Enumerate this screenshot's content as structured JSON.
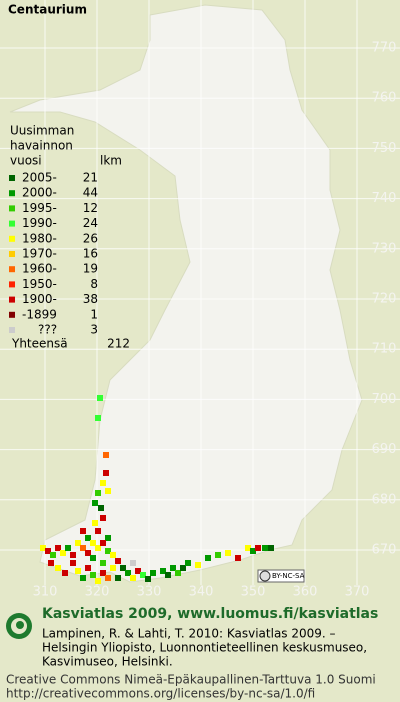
{
  "title": "Centaurium",
  "legend": {
    "heading": [
      "Uusimman",
      "havainnon"
    ],
    "columns": [
      "vuosi",
      "lkm"
    ],
    "rows": [
      {
        "label": "2005-",
        "count": 21,
        "color": "#006400"
      },
      {
        "label": "2000-",
        "count": 44,
        "color": "#009900"
      },
      {
        "label": "1995-",
        "count": 12,
        "color": "#33cc00"
      },
      {
        "label": "1990-",
        "count": 24,
        "color": "#33ff33"
      },
      {
        "label": "1980-",
        "count": 26,
        "color": "#ffff00"
      },
      {
        "label": "1970-",
        "count": 16,
        "color": "#ffcc00"
      },
      {
        "label": "1960-",
        "count": 19,
        "color": "#ff6600"
      },
      {
        "label": "1950-",
        "count": 8,
        "color": "#ff2200"
      },
      {
        "label": "1900-",
        "count": 38,
        "color": "#cc0000"
      },
      {
        "label": "-1899",
        "count": 1,
        "color": "#800000"
      },
      {
        "label": "???",
        "count": 3,
        "color": "#cccccc"
      }
    ],
    "total_label": "Yhteensä",
    "total": 212
  },
  "map": {
    "y_labels": [
      770,
      760,
      750,
      740,
      730,
      720,
      710,
      700,
      690,
      680,
      670
    ],
    "x_labels": [
      310,
      320,
      330,
      340,
      350,
      360,
      370
    ],
    "license_badge": "BY-NC-SA"
  },
  "footer": {
    "heading": "Kasviatlas 2009, www.luomus.fi/kasviatlas",
    "citation": [
      "Lampinen, R. & Lahti, T. 2010: Kasviatlas 2009. –",
      "Helsingin Yliopisto, Luonnontieteellinen keskusmuseo,",
      "Kasvimuseo, Helsinki."
    ],
    "license": [
      "Creative Commons Nimeä-Epäkaupallinen-Tarttuva 1.0 Suomi",
      "http://creativecommons.org/licenses/by-nc-sa/1.0/fi"
    ]
  }
}
